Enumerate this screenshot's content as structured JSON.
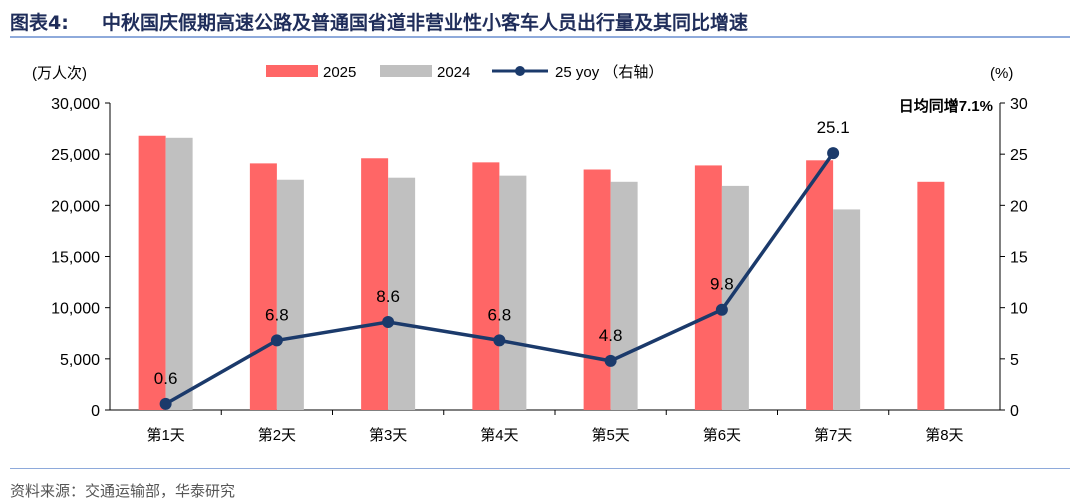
{
  "header": {
    "figure_number": "图表4:",
    "title": "中秋国庆假期高速公路及普通国省道非营业性小客车人员出行量及其同比增速"
  },
  "footer": {
    "source": "资料来源：交通运输部，华泰研究"
  },
  "colors": {
    "series_2025": "#ff6666",
    "series_2024": "#c0c0c0",
    "yoy_line": "#1b3a6b"
  },
  "chart_data": {
    "type": "bar+line",
    "categories": [
      "第1天",
      "第2天",
      "第3天",
      "第4天",
      "第5天",
      "第6天",
      "第7天",
      "第8天"
    ],
    "series": [
      {
        "name": "2025",
        "axis": "left",
        "type": "bar",
        "values": [
          26800,
          24100,
          24600,
          24200,
          23500,
          23900,
          24400,
          22300
        ]
      },
      {
        "name": "2024",
        "axis": "left",
        "type": "bar",
        "values": [
          26600,
          22500,
          22700,
          22900,
          22300,
          21900,
          19600,
          null
        ]
      },
      {
        "name": "25 yoy （右轴）",
        "axis": "right",
        "type": "line",
        "values": [
          0.6,
          6.8,
          8.6,
          6.8,
          4.8,
          9.8,
          25.1,
          null
        ],
        "labels": [
          "0.6",
          "6.8",
          "8.6",
          "6.8",
          "4.8",
          "9.8",
          "25.1",
          ""
        ]
      }
    ],
    "y_left": {
      "label": "(万人次)",
      "range": [
        0,
        30000
      ],
      "ticks": [
        0,
        5000,
        10000,
        15000,
        20000,
        25000,
        30000
      ],
      "tick_labels": [
        "0",
        "5,000",
        "10,000",
        "15,000",
        "20,000",
        "25,000",
        "30,000"
      ]
    },
    "y_right": {
      "label": "(%)",
      "range": [
        0,
        30
      ],
      "ticks": [
        0,
        5,
        10,
        15,
        20,
        25,
        30
      ],
      "tick_labels": [
        "0",
        "5",
        "10",
        "15",
        "20",
        "25",
        "30"
      ]
    },
    "annotation": "日均同增7.1%",
    "legend_position": "top-center"
  }
}
